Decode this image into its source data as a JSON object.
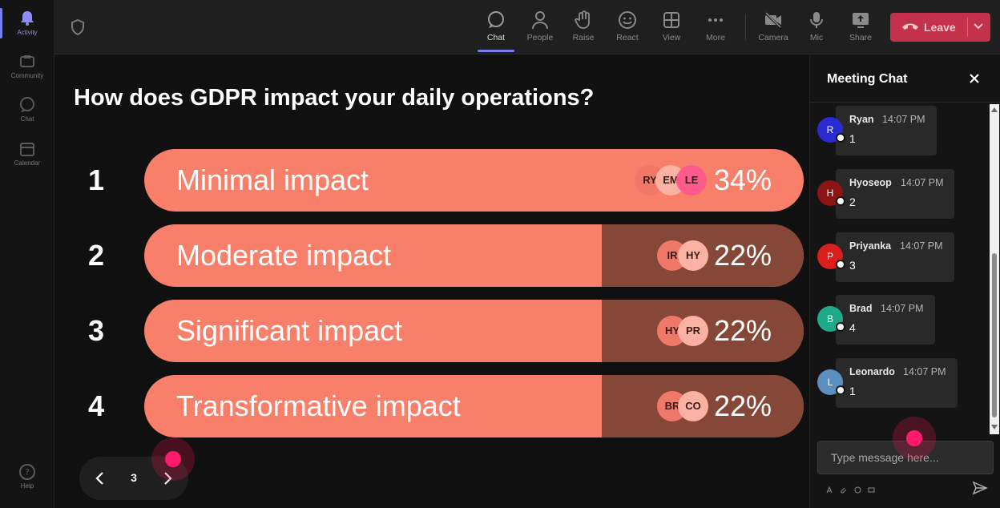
{
  "rail": {
    "items": [
      {
        "label": "Activity",
        "icon": "bell-icon"
      },
      {
        "label": "Community",
        "icon": "community-icon"
      },
      {
        "label": "Chat",
        "icon": "chat-icon"
      },
      {
        "label": "Calendar",
        "icon": "calendar-icon"
      }
    ],
    "help_label": "Help"
  },
  "toolbar": {
    "chat": "Chat",
    "people": "People",
    "raise": "Raise",
    "react": "React",
    "view": "View",
    "more": "More",
    "camera": "Camera",
    "mic": "Mic",
    "share": "Share",
    "leave": "Leave",
    "leave_color": "#c4314b"
  },
  "poll": {
    "question": "How does GDPR impact your daily operations?",
    "options": [
      {
        "num": "1",
        "label": "Minimal impact",
        "pct": "34%",
        "avatars": [
          "RY",
          "EM",
          "LE"
        ]
      },
      {
        "num": "2",
        "label": "Moderate impact",
        "pct": "22%",
        "avatars": [
          "IR",
          "HY"
        ]
      },
      {
        "num": "3",
        "label": "Significant impact",
        "pct": "22%",
        "avatars": [
          "HY",
          "PR"
        ]
      },
      {
        "num": "4",
        "label": "Transformative impact",
        "pct": "22%",
        "avatars": [
          "BR",
          "CO"
        ]
      }
    ],
    "page": "3",
    "bar_color": "#f8806a"
  },
  "chat": {
    "title": "Meeting Chat",
    "messages": [
      {
        "initial": "R",
        "name": "Ryan",
        "time": "14:07 PM",
        "text": "1",
        "color": "#2b2bd4"
      },
      {
        "initial": "H",
        "name": "Hyoseop",
        "time": "14:07 PM",
        "text": "2",
        "color": "#8b1414"
      },
      {
        "initial": "P",
        "name": "Priyanka",
        "time": "14:07 PM",
        "text": "3",
        "color": "#d91e1e"
      },
      {
        "initial": "B",
        "name": "Brad",
        "time": "14:07 PM",
        "text": "4",
        "color": "#1fa98a"
      },
      {
        "initial": "L",
        "name": "Leonardo",
        "time": "14:07 PM",
        "text": "1",
        "color": "#5a8fc0"
      }
    ],
    "input_placeholder": "Type message here..."
  }
}
